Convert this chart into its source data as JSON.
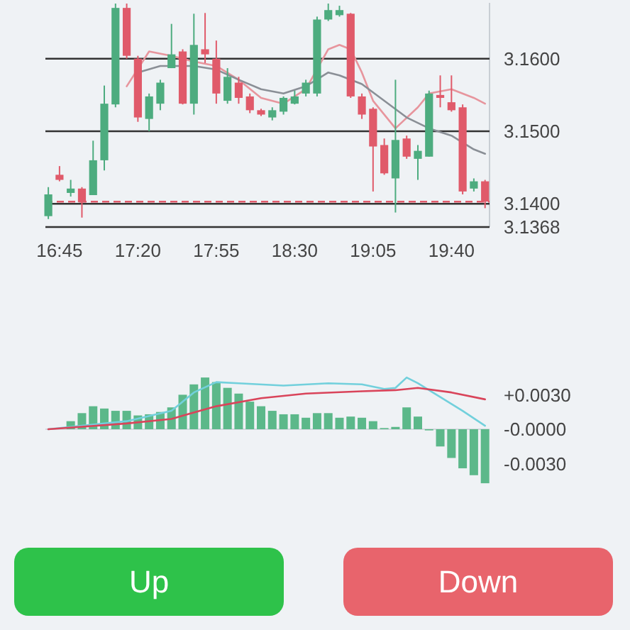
{
  "chart_data": [
    {
      "type": "candlestick",
      "x": [
        16.6667,
        16.75,
        16.8333,
        16.9167,
        17,
        17.0833,
        17.1667,
        17.25,
        17.3333,
        17.4167,
        17.5,
        17.5833,
        17.6667,
        17.75,
        17.8333,
        17.9167,
        18,
        18.0833,
        18.1667,
        18.25,
        18.3333,
        18.4167,
        18.5,
        18.5833,
        18.6667,
        18.75,
        18.8333,
        18.9167,
        19,
        19.0833,
        19.1667,
        19.25,
        19.3333,
        19.4167,
        19.5,
        19.5833,
        19.6667,
        19.75,
        19.8333,
        19.9167
      ],
      "ohlc": [
        [
          3.1383,
          3.1423,
          3.1379,
          3.1413
        ],
        [
          3.144,
          3.1452,
          3.1431,
          3.1433
        ],
        [
          3.1415,
          3.1433,
          3.141,
          3.1421
        ],
        [
          3.1421,
          3.1423,
          3.1381,
          3.1402
        ],
        [
          3.1412,
          3.1487,
          3.1412,
          3.146
        ],
        [
          3.146,
          3.1563,
          3.1446,
          3.1538
        ],
        [
          3.1537,
          3.1676,
          3.1533,
          3.167
        ],
        [
          3.167,
          3.1676,
          3.16,
          3.1604
        ],
        [
          3.16,
          3.1604,
          3.1513,
          3.1519
        ],
        [
          3.1517,
          3.1552,
          3.15,
          3.1548
        ],
        [
          3.1538,
          3.1571,
          3.1529,
          3.1567
        ],
        [
          3.1587,
          3.1648,
          3.1587,
          3.1606
        ],
        [
          3.161,
          3.1613,
          3.1537,
          3.1538
        ],
        [
          3.1538,
          3.1662,
          3.1523,
          3.1619
        ],
        [
          3.1613,
          3.1663,
          3.1594,
          3.1606
        ],
        [
          3.16,
          3.1625,
          3.1538,
          3.1552
        ],
        [
          3.1542,
          3.1587,
          3.1538,
          3.1575
        ],
        [
          3.1567,
          3.1575,
          3.1538,
          3.1546
        ],
        [
          3.1548,
          3.1552,
          3.1525,
          3.1529
        ],
        [
          3.1529,
          3.1531,
          3.1521,
          3.1523
        ],
        [
          3.1519,
          3.1533,
          3.1515,
          3.1529
        ],
        [
          3.1527,
          3.1548,
          3.1523,
          3.1546
        ],
        [
          3.1538,
          3.1556,
          3.1537,
          3.1548
        ],
        [
          3.1552,
          3.1571,
          3.1548,
          3.1567
        ],
        [
          3.1552,
          3.1658,
          3.1548,
          3.1654
        ],
        [
          3.1654,
          3.1676,
          3.1652,
          3.1667
        ],
        [
          3.166,
          3.1673,
          3.1658,
          3.1667
        ],
        [
          3.1662,
          3.1663,
          3.1546,
          3.1548
        ],
        [
          3.1548,
          3.1552,
          3.1517,
          3.1523
        ],
        [
          3.1531,
          3.1533,
          3.1417,
          3.1479
        ],
        [
          3.1481,
          3.149,
          3.144,
          3.1442
        ],
        [
          3.1435,
          3.1571,
          3.1388,
          3.1488
        ],
        [
          3.149,
          3.1494,
          3.1462,
          3.1465
        ],
        [
          3.1462,
          3.1481,
          3.1433,
          3.1473
        ],
        [
          3.1465,
          3.1556,
          3.1465,
          3.1552
        ],
        [
          3.155,
          3.1577,
          3.1533,
          3.1546
        ],
        [
          3.154,
          3.1577,
          3.1527,
          3.1529
        ],
        [
          3.1533,
          3.1537,
          3.1413,
          3.1417
        ],
        [
          3.1421,
          3.1435,
          3.1417,
          3.1431
        ],
        [
          3.1431,
          3.1433,
          3.1394,
          3.1403
        ]
      ],
      "series": [
        {
          "type": "line",
          "color": "#e7959d",
          "x": [
            17.25,
            17.4167,
            17.5833,
            17.75,
            17.9167,
            18.0833,
            18.25,
            18.4167,
            18.5833,
            18.75,
            18.8333,
            18.9167,
            19,
            19.0833,
            19.25,
            19.4167,
            19.5,
            19.6667,
            19.8333,
            19.9167
          ],
          "values": [
            3.1562,
            3.161,
            3.1604,
            3.1596,
            3.159,
            3.1571,
            3.1546,
            3.1538,
            3.1558,
            3.1613,
            3.1619,
            3.1613,
            3.1581,
            3.1542,
            3.1504,
            3.1533,
            3.1552,
            3.1558,
            3.1546,
            3.1538
          ]
        },
        {
          "type": "line",
          "color": "#8a8f96",
          "x": [
            17.3333,
            17.5,
            17.75,
            17.9167,
            18.0833,
            18.25,
            18.4167,
            18.5833,
            18.75,
            18.8333,
            19,
            19.1667,
            19.3333,
            19.5,
            19.6667,
            19.8333,
            19.9167
          ],
          "values": [
            3.1581,
            3.159,
            3.159,
            3.1585,
            3.1571,
            3.1558,
            3.1552,
            3.1562,
            3.1581,
            3.1577,
            3.1565,
            3.1542,
            3.1519,
            3.1504,
            3.1494,
            3.1475,
            3.1469
          ]
        }
      ],
      "xlim": [
        16.645,
        19.95
      ],
      "xticks": [
        {
          "value": 16.75,
          "label": "16:45"
        },
        {
          "value": 17.3333,
          "label": "17:20"
        },
        {
          "value": 17.9167,
          "label": "17:55"
        },
        {
          "value": 18.5,
          "label": "18:30"
        },
        {
          "value": 19.0833,
          "label": "19:05"
        },
        {
          "value": 19.6667,
          "label": "19:40"
        }
      ],
      "ylim": [
        3.1368,
        3.1677
      ],
      "yticks": [
        {
          "value": 3.16,
          "label": "3.1600"
        },
        {
          "value": 3.15,
          "label": "3.1500"
        },
        {
          "value": 3.14,
          "label": "3.1400"
        },
        3.1368
      ],
      "grid": "y",
      "ref_lines": [
        {
          "axis": "y",
          "value": 3.1403,
          "color": "#e05a6a",
          "line_style": "dashed"
        }
      ]
    },
    {
      "type": "bar",
      "x": [
        16.8333,
        16.9167,
        17,
        17.0833,
        17.1667,
        17.25,
        17.3333,
        17.4167,
        17.5,
        17.5833,
        17.6667,
        17.75,
        17.8333,
        17.9167,
        18,
        18.0833,
        18.1667,
        18.25,
        18.3333,
        18.4167,
        18.5,
        18.5833,
        18.6667,
        18.75,
        18.8333,
        18.9167,
        19,
        19.0833,
        19.1667,
        19.25,
        19.3333,
        19.4167,
        19.5,
        19.5833,
        19.6667,
        19.75,
        19.8333,
        19.9167
      ],
      "series": [
        {
          "type": "bar",
          "color": "#5cb88a",
          "values": [
            0.0007,
            0.0014,
            0.002,
            0.0018,
            0.0016,
            0.0016,
            0.0012,
            0.0013,
            0.0015,
            0.0019,
            0.003,
            0.0039,
            0.0045,
            0.0041,
            0.0036,
            0.0031,
            0.0024,
            0.002,
            0.0016,
            0.0013,
            0.0013,
            0.001,
            0.0014,
            0.0014,
            0.001,
            0.0011,
            0.001,
            0.0007,
            0.0001,
            0.0002,
            0.0019,
            0.0011,
            -0.0001,
            -0.0015,
            -0.0025,
            -0.0034,
            -0.004,
            -0.0047
          ]
        },
        {
          "type": "line",
          "color": "#72d0dc",
          "x": [
            16.6667,
            17.25,
            17.5833,
            17.75,
            17.9167,
            18.0833,
            18.4167,
            18.75,
            19,
            19.1667,
            19.25,
            19.3333,
            19.4167,
            19.5833,
            19.75,
            19.9167
          ],
          "values": [
            0,
            0.0007,
            0.0016,
            0.0032,
            0.0041,
            0.004,
            0.0038,
            0.004,
            0.0039,
            0.0035,
            0.0036,
            0.0045,
            0.004,
            0.0028,
            0.0016,
            0.0003
          ]
        },
        {
          "type": "line",
          "color": "#d9445a",
          "x": [
            16.6667,
            17.25,
            17.5833,
            17.9167,
            18.25,
            18.5833,
            19,
            19.25,
            19.4167,
            19.6667,
            19.9167
          ],
          "values": [
            0,
            0.0005,
            0.0009,
            0.002,
            0.0027,
            0.0031,
            0.0033,
            0.0034,
            0.0036,
            0.0032,
            0.0026
          ]
        }
      ],
      "xlim": [
        16.645,
        19.95
      ],
      "ylim": [
        -0.005,
        0.005
      ],
      "yticks": [
        {
          "value": 0.003,
          "label": "+0.0030"
        },
        {
          "value": 0,
          "label": "-0.0000"
        },
        {
          "value": -0.003,
          "label": "-0.0030"
        }
      ],
      "tick_labels": "y",
      "annotations": [
        "Up",
        "Down"
      ]
    }
  ]
}
